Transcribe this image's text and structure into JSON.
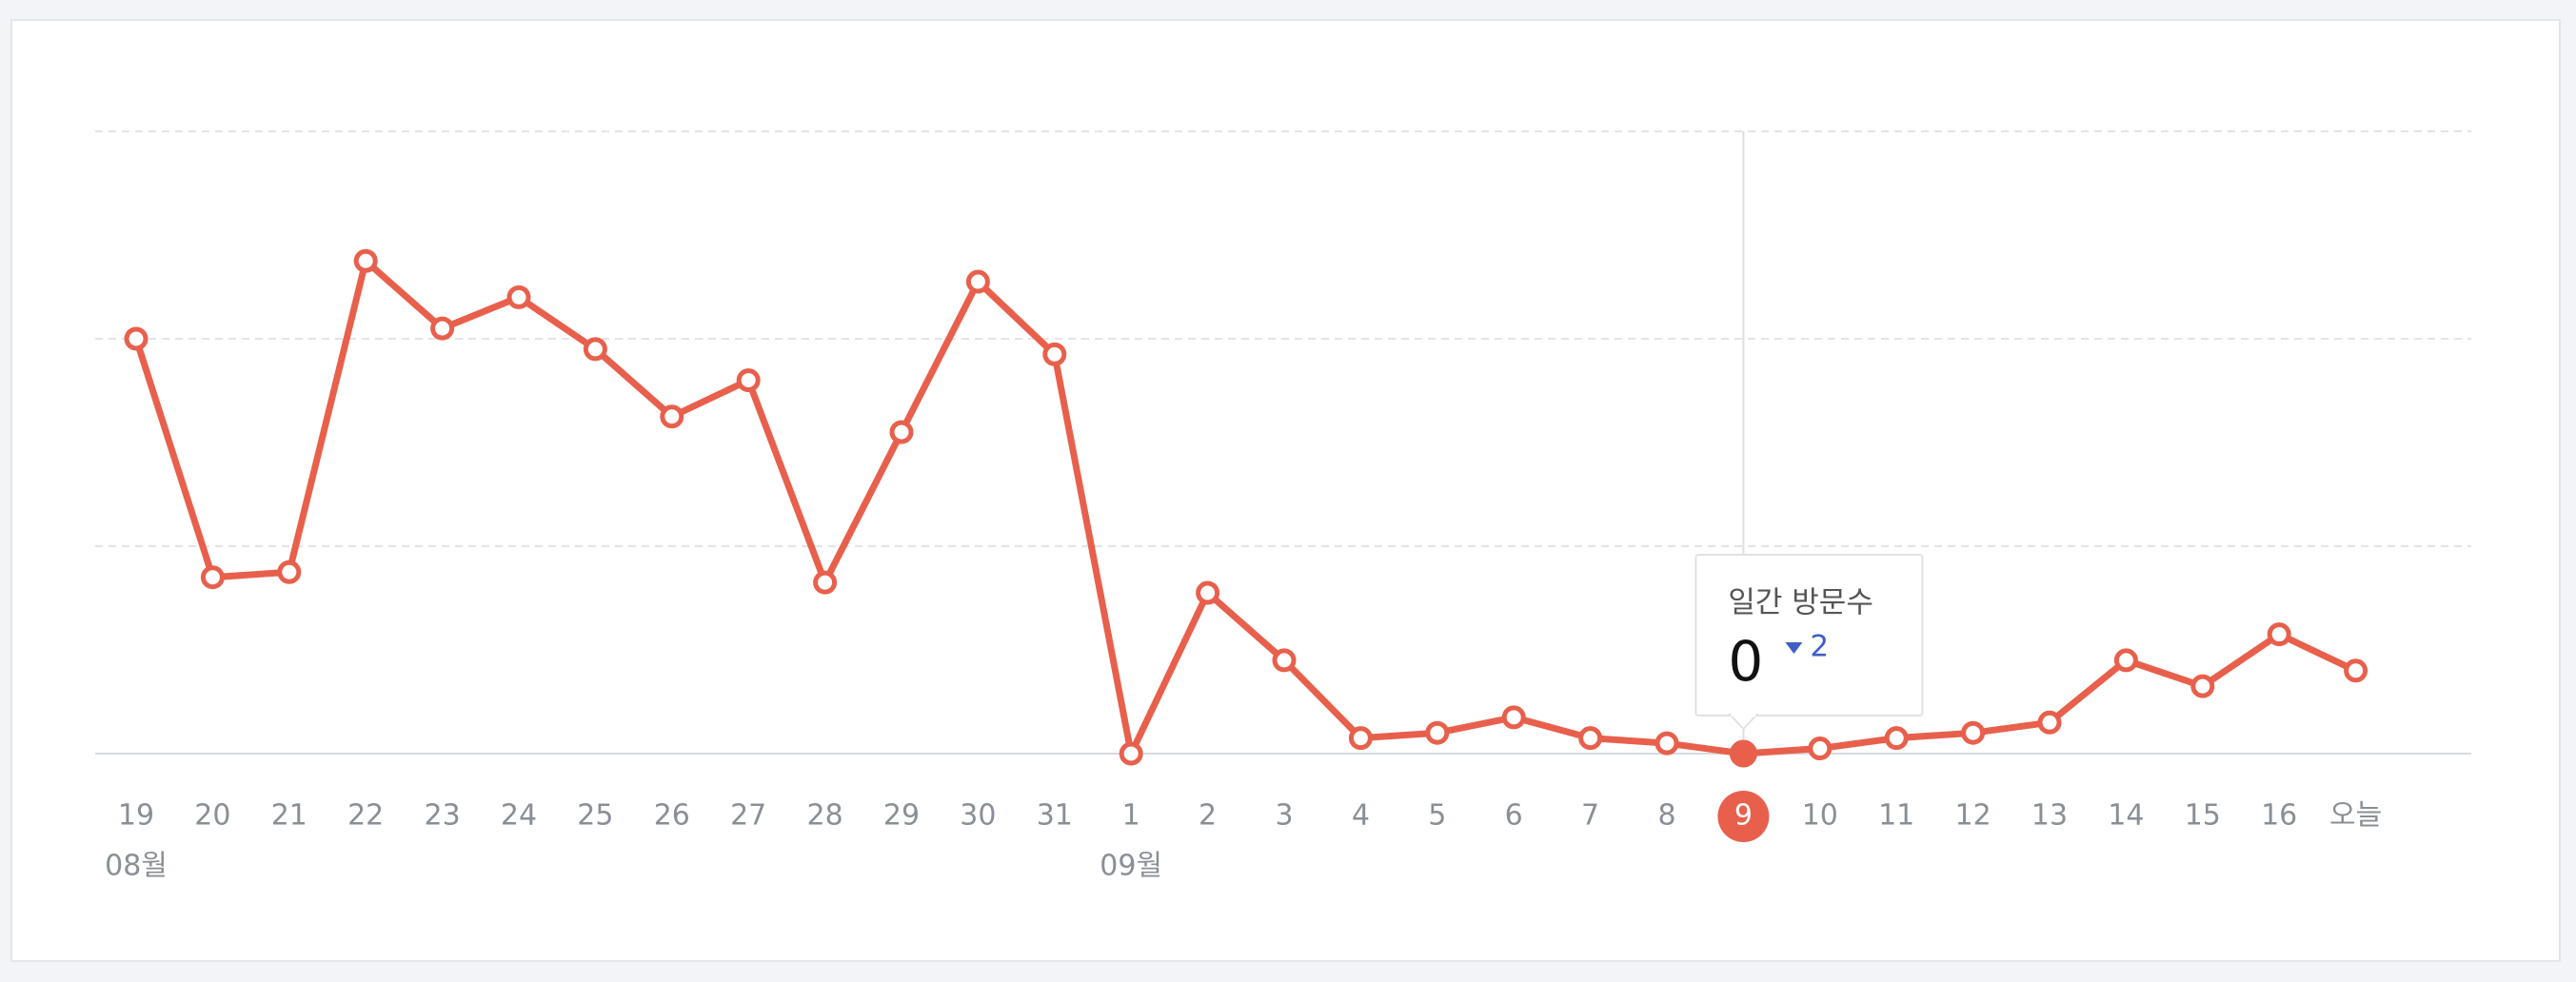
{
  "chart_data": {
    "type": "line",
    "categories": [
      "19",
      "20",
      "21",
      "22",
      "23",
      "24",
      "25",
      "26",
      "27",
      "28",
      "29",
      "30",
      "31",
      "1",
      "2",
      "3",
      "4",
      "5",
      "6",
      "7",
      "8",
      "9",
      "10",
      "11",
      "12",
      "13",
      "14",
      "15",
      "16",
      "오늘"
    ],
    "month_labels": [
      "08월",
      null,
      null,
      null,
      null,
      null,
      null,
      null,
      null,
      null,
      null,
      null,
      null,
      "09월",
      null,
      null,
      null,
      null,
      null,
      null,
      null,
      null,
      null,
      null,
      null,
      null,
      null,
      null,
      null,
      null
    ],
    "values": [
      80,
      34,
      35,
      95,
      82,
      88,
      78,
      65,
      72,
      33,
      62,
      91,
      77,
      0,
      31,
      18,
      3,
      4,
      7,
      3,
      2,
      0,
      1,
      3,
      4,
      6,
      18,
      13,
      23,
      16
    ],
    "color": "#e8604c",
    "ylim": [
      0,
      120
    ],
    "yticks": [
      0,
      40,
      80,
      120
    ],
    "grid": true,
    "selected_index": 21,
    "tooltip": {
      "title": "일간 방문수",
      "value": 0,
      "change": 2,
      "direction": "down"
    }
  }
}
